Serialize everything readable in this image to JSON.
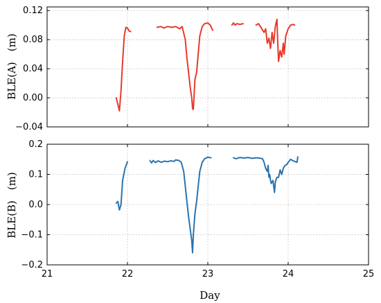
{
  "chart_data": [
    {
      "type": "line",
      "ylabel": "BLE(A)　(m)",
      "xlabel": "",
      "xlim": [
        21,
        25
      ],
      "ylim": [
        -0.04,
        0.125
      ],
      "yticks": [
        -0.04,
        0.0,
        0.04,
        0.08,
        0.12
      ],
      "ytick_labels": [
        "−0.04",
        "0.00",
        "0.04",
        "0.08",
        "0.12"
      ],
      "xticks": [
        21,
        22,
        23,
        24,
        25
      ],
      "grid": true,
      "color": "#e8392b",
      "segments": [
        [
          [
            21.86,
            0.0
          ],
          [
            21.9,
            -0.018
          ],
          [
            21.92,
            0.01
          ],
          [
            21.94,
            0.05
          ],
          [
            21.96,
            0.085
          ],
          [
            21.98,
            0.097
          ],
          [
            22.0,
            0.096
          ],
          [
            22.02,
            0.092
          ],
          [
            22.04,
            0.091
          ]
        ],
        [
          [
            22.37,
            0.097
          ],
          [
            22.42,
            0.098
          ],
          [
            22.45,
            0.096
          ],
          [
            22.5,
            0.098
          ],
          [
            22.55,
            0.097
          ],
          [
            22.6,
            0.098
          ],
          [
            22.65,
            0.095
          ],
          [
            22.68,
            0.098
          ],
          [
            22.72,
            0.08
          ],
          [
            22.74,
            0.055
          ],
          [
            22.76,
            0.035
          ],
          [
            22.78,
            0.015
          ],
          [
            22.8,
            0.0
          ],
          [
            22.81,
            -0.015
          ],
          [
            22.82,
            -0.016
          ],
          [
            22.84,
            0.025
          ],
          [
            22.86,
            0.035
          ],
          [
            22.88,
            0.06
          ],
          [
            22.9,
            0.085
          ],
          [
            22.93,
            0.098
          ],
          [
            22.96,
            0.102
          ],
          [
            23.0,
            0.103
          ],
          [
            23.03,
            0.1
          ],
          [
            23.06,
            0.093
          ]
        ],
        [
          [
            23.3,
            0.1
          ],
          [
            23.32,
            0.103
          ],
          [
            23.34,
            0.1
          ],
          [
            23.36,
            0.102
          ],
          [
            23.4,
            0.101
          ],
          [
            23.44,
            0.102
          ]
        ],
        [
          [
            23.6,
            0.1
          ],
          [
            23.63,
            0.102
          ],
          [
            23.66,
            0.097
          ],
          [
            23.7,
            0.09
          ],
          [
            23.72,
            0.095
          ],
          [
            23.74,
            0.075
          ],
          [
            23.76,
            0.082
          ],
          [
            23.78,
            0.068
          ],
          [
            23.8,
            0.09
          ],
          [
            23.82,
            0.075
          ],
          [
            23.84,
            0.098
          ],
          [
            23.86,
            0.108
          ],
          [
            23.87,
            0.078
          ],
          [
            23.88,
            0.05
          ],
          [
            23.9,
            0.065
          ],
          [
            23.92,
            0.056
          ],
          [
            23.94,
            0.075
          ],
          [
            23.95,
            0.06
          ],
          [
            23.97,
            0.085
          ],
          [
            24.0,
            0.095
          ],
          [
            24.03,
            0.1
          ],
          [
            24.06,
            0.101
          ],
          [
            24.08,
            0.1
          ]
        ]
      ]
    },
    {
      "type": "line",
      "ylabel": "BLE(B)　(m)",
      "xlabel": "Day",
      "xlim": [
        21,
        25
      ],
      "ylim": [
        -0.2,
        0.2
      ],
      "yticks": [
        -0.2,
        -0.1,
        0.0,
        0.1,
        0.2
      ],
      "ytick_labels": [
        "−0.2",
        "−0.1",
        "0.0",
        "0.1",
        "0.2"
      ],
      "xticks": [
        21,
        22,
        23,
        24,
        25
      ],
      "xtick_labels": [
        "21",
        "22",
        "23",
        "24",
        "25"
      ],
      "grid": true,
      "color": "#2a73ad",
      "segments": [
        [
          [
            21.86,
            0.005
          ],
          [
            21.88,
            0.01
          ],
          [
            21.9,
            -0.018
          ],
          [
            21.92,
            0.0
          ],
          [
            21.94,
            0.08
          ],
          [
            21.97,
            0.12
          ],
          [
            22.0,
            0.142
          ]
        ],
        [
          [
            22.28,
            0.146
          ],
          [
            22.3,
            0.138
          ],
          [
            22.32,
            0.146
          ],
          [
            22.35,
            0.139
          ],
          [
            22.38,
            0.145
          ],
          [
            22.42,
            0.14
          ],
          [
            22.46,
            0.144
          ],
          [
            22.5,
            0.142
          ],
          [
            22.54,
            0.145
          ],
          [
            22.58,
            0.143
          ],
          [
            22.6,
            0.148
          ],
          [
            22.64,
            0.146
          ],
          [
            22.67,
            0.14
          ],
          [
            22.7,
            0.11
          ],
          [
            22.72,
            0.06
          ],
          [
            22.74,
            0.01
          ],
          [
            22.76,
            -0.04
          ],
          [
            22.78,
            -0.08
          ],
          [
            22.8,
            -0.12
          ],
          [
            22.81,
            -0.16
          ],
          [
            22.82,
            -0.1
          ],
          [
            22.84,
            -0.03
          ],
          [
            22.86,
            0.01
          ],
          [
            22.88,
            0.06
          ],
          [
            22.9,
            0.11
          ],
          [
            22.93,
            0.14
          ],
          [
            22.96,
            0.152
          ],
          [
            23.0,
            0.157
          ],
          [
            23.04,
            0.155
          ]
        ],
        [
          [
            23.32,
            0.155
          ],
          [
            23.35,
            0.152
          ],
          [
            23.4,
            0.156
          ],
          [
            23.45,
            0.154
          ],
          [
            23.5,
            0.156
          ],
          [
            23.55,
            0.153
          ],
          [
            23.6,
            0.155
          ],
          [
            23.64,
            0.154
          ],
          [
            23.68,
            0.152
          ],
          [
            23.7,
            0.14
          ],
          [
            23.72,
            0.12
          ],
          [
            23.74,
            0.11
          ],
          [
            23.75,
            0.13
          ],
          [
            23.76,
            0.09
          ],
          [
            23.77,
            0.1
          ],
          [
            23.78,
            0.08
          ],
          [
            23.79,
            0.07
          ],
          [
            23.81,
            0.08
          ],
          [
            23.82,
            0.06
          ],
          [
            23.83,
            0.04
          ],
          [
            23.84,
            0.075
          ],
          [
            23.86,
            0.09
          ],
          [
            23.88,
            0.09
          ],
          [
            23.9,
            0.115
          ],
          [
            23.92,
            0.1
          ],
          [
            23.94,
            0.12
          ],
          [
            23.96,
            0.13
          ],
          [
            23.98,
            0.132
          ],
          [
            24.0,
            0.14
          ],
          [
            24.03,
            0.15
          ],
          [
            24.06,
            0.145
          ],
          [
            24.09,
            0.142
          ],
          [
            24.11,
            0.14
          ],
          [
            24.12,
            0.158
          ]
        ]
      ]
    }
  ]
}
